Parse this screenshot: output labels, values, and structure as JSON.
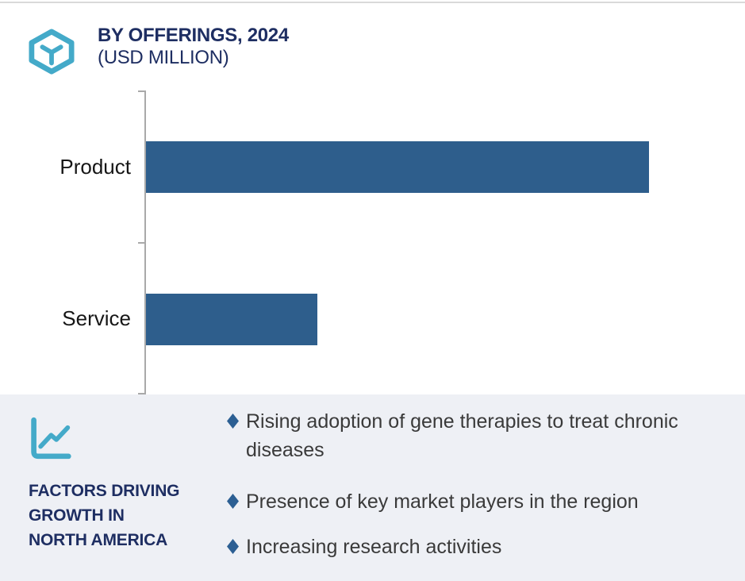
{
  "header": {
    "title": "BY OFFERINGS, 2024",
    "subtitle": "(USD MILLION)",
    "logo_icon": "hexagon-box-icon"
  },
  "chart_data": {
    "type": "bar",
    "orientation": "horizontal",
    "title": "BY OFFERINGS, 2024",
    "subtitle": "(USD MILLION)",
    "units": "USD Million",
    "categories": [
      "Product",
      "Service"
    ],
    "values_relative": [
      100,
      34
    ],
    "value_labels_shown": false,
    "grid": false,
    "legend": false,
    "axis_style": "single vertical category axis with ticks at category boundaries",
    "bar_color": "#2e5e8c",
    "axis_color": "#a9a9a9"
  },
  "factors": {
    "icon": "line-chart-icon",
    "heading": "FACTORS DRIVING GROWTH IN NORTH AMERICA",
    "heading_lines": [
      "FACTORS DRIVING",
      "GROWTH IN",
      "NORTH AMERICA"
    ],
    "bullets": [
      "Rising adoption of gene therapies to treat chronic diseases",
      "Presence of key market players in the region",
      "Increasing research activities"
    ]
  },
  "colors": {
    "accent_teal": "#44aac9",
    "navy": "#1e2e62",
    "bar_blue": "#2e5e8c",
    "panel_bg": "#eef0f5",
    "bullet_diamond": "#2c5f93",
    "body_text": "#3a3a3a",
    "axis_grey": "#a9a9a9",
    "top_line": "#d9d9d9"
  }
}
